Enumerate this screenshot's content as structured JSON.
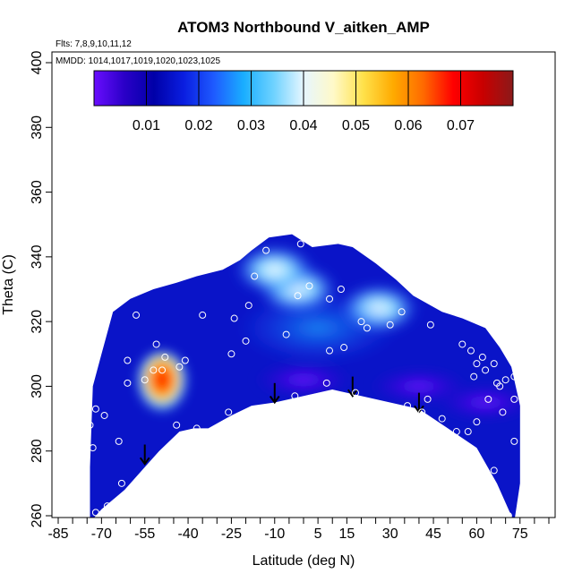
{
  "chart_data": {
    "type": "heatmap",
    "title": "ATOM3 Northbound V_aitken_AMP",
    "annotations": {
      "flights": "Flts: 7,8,9,10,11,12",
      "dates": "MMDD: 1014,1017,1019,1020,1023,1025"
    },
    "xlabel": "Latitude (deg N)",
    "ylabel": "Theta (C)",
    "xlim": [
      -85,
      85
    ],
    "ylim": [
      260,
      400
    ],
    "x_ticks": [
      -85,
      -70,
      -55,
      -40,
      -25,
      -10,
      5,
      15,
      30,
      45,
      60,
      75
    ],
    "y_ticks": [
      260,
      280,
      300,
      320,
      340,
      360,
      380,
      400
    ],
    "colorbar": {
      "range": [
        0.0,
        0.08
      ],
      "ticks": [
        0.01,
        0.02,
        0.03,
        0.04,
        0.05,
        0.06,
        0.07
      ],
      "tick_labels": [
        "0.01",
        "0.02",
        "0.03",
        "0.04",
        "0.05",
        "0.06",
        "0.07"
      ],
      "colors": [
        "#6a0dff",
        "#2b00c8",
        "#0000a8",
        "#0a1ee0",
        "#1e5aff",
        "#1aaeff",
        "#6ed2ff",
        "#e6f6ff",
        "#fff9c8",
        "#ffe14a",
        "#ffaa00",
        "#ff6a00",
        "#ff0000",
        "#c80000",
        "#8b1a1a"
      ]
    },
    "lower_boundary": [
      {
        "lat": -74,
        "theta": 258
      },
      {
        "lat": -70,
        "theta": 262
      },
      {
        "lat": -62,
        "theta": 268
      },
      {
        "lat": -55,
        "theta": 275
      },
      {
        "lat": -50,
        "theta": 280
      },
      {
        "lat": -43,
        "theta": 286
      },
      {
        "lat": -38,
        "theta": 287
      },
      {
        "lat": -33,
        "theta": 287
      },
      {
        "lat": -25,
        "theta": 291
      },
      {
        "lat": -18,
        "theta": 294
      },
      {
        "lat": -10,
        "theta": 295
      },
      {
        "lat": 0,
        "theta": 297
      },
      {
        "lat": 10,
        "theta": 299
      },
      {
        "lat": 20,
        "theta": 297
      },
      {
        "lat": 30,
        "theta": 295
      },
      {
        "lat": 40,
        "theta": 293
      },
      {
        "lat": 50,
        "theta": 287
      },
      {
        "lat": 60,
        "theta": 281
      },
      {
        "lat": 67,
        "theta": 270
      },
      {
        "lat": 73,
        "theta": 258
      }
    ],
    "upper_boundary": [
      {
        "lat": -74,
        "theta": 275
      },
      {
        "lat": -73,
        "theta": 300
      },
      {
        "lat": -70,
        "theta": 310
      },
      {
        "lat": -66,
        "theta": 323
      },
      {
        "lat": -60,
        "theta": 327
      },
      {
        "lat": -52,
        "theta": 330
      },
      {
        "lat": -44,
        "theta": 332
      },
      {
        "lat": -37,
        "theta": 334
      },
      {
        "lat": -28,
        "theta": 336
      },
      {
        "lat": -22,
        "theta": 339
      },
      {
        "lat": -18,
        "theta": 342
      },
      {
        "lat": -12,
        "theta": 346
      },
      {
        "lat": -4,
        "theta": 347
      },
      {
        "lat": 3,
        "theta": 343
      },
      {
        "lat": 12,
        "theta": 344
      },
      {
        "lat": 17,
        "theta": 343
      },
      {
        "lat": 25,
        "theta": 338
      },
      {
        "lat": 32,
        "theta": 333
      },
      {
        "lat": 38,
        "theta": 328
      },
      {
        "lat": 48,
        "theta": 323
      },
      {
        "lat": 55,
        "theta": 321
      },
      {
        "lat": 63,
        "theta": 318
      },
      {
        "lat": 68,
        "theta": 312
      },
      {
        "lat": 72,
        "theta": 306
      },
      {
        "lat": 75,
        "theta": 294
      },
      {
        "lat": 75,
        "theta": 270
      },
      {
        "lat": 73,
        "theta": 258
      }
    ],
    "hotspot": {
      "lat": -49,
      "theta": 300,
      "max_value": 0.075
    },
    "highlight_regions": [
      {
        "lat": 26,
        "theta": 324,
        "value": 0.04
      },
      {
        "lat": -2,
        "theta": 330,
        "value": 0.035
      },
      {
        "lat": -10,
        "theta": 336,
        "value": 0.035
      }
    ],
    "low_regions": [
      {
        "lat": 0,
        "theta": 302,
        "value": 0.002
      },
      {
        "lat": 40,
        "theta": 300,
        "value": 0.004
      },
      {
        "lat": 63,
        "theta": 295,
        "value": 0.003
      }
    ],
    "arrows": [
      {
        "lat": -55,
        "theta_top": 282,
        "theta_tip": 276
      },
      {
        "lat": -10,
        "theta_top": 301,
        "theta_tip": 295
      },
      {
        "lat": 17,
        "theta_top": 303,
        "theta_tip": 297
      },
      {
        "lat": 40,
        "theta_top": 298,
        "theta_tip": 292
      }
    ],
    "sample_points": [
      [
        -72,
        261
      ],
      [
        -68,
        263
      ],
      [
        -74,
        288
      ],
      [
        -73,
        281
      ],
      [
        -72,
        293
      ],
      [
        -69,
        291
      ],
      [
        -64,
        283
      ],
      [
        -63,
        270
      ],
      [
        -61,
        301
      ],
      [
        -61,
        308
      ],
      [
        -58,
        322
      ],
      [
        -55,
        302
      ],
      [
        -52,
        305
      ],
      [
        -51,
        313
      ],
      [
        -48,
        309
      ],
      [
        -49,
        305
      ],
      [
        -44,
        288
      ],
      [
        -43,
        306
      ],
      [
        -41,
        308
      ],
      [
        -37,
        287
      ],
      [
        -35,
        322
      ],
      [
        -26,
        292
      ],
      [
        -25,
        310
      ],
      [
        -24,
        321
      ],
      [
        -20,
        314
      ],
      [
        -19,
        325
      ],
      [
        -17,
        334
      ],
      [
        -13,
        342
      ],
      [
        -6,
        316
      ],
      [
        -3,
        297
      ],
      [
        -2,
        328
      ],
      [
        2,
        331
      ],
      [
        -1,
        344
      ],
      [
        8,
        301
      ],
      [
        9,
        311
      ],
      [
        9,
        327
      ],
      [
        13,
        330
      ],
      [
        14,
        312
      ],
      [
        18,
        298
      ],
      [
        20,
        320
      ],
      [
        22,
        318
      ],
      [
        30,
        319
      ],
      [
        34,
        323
      ],
      [
        36,
        294
      ],
      [
        41,
        292
      ],
      [
        43,
        296
      ],
      [
        44,
        319
      ],
      [
        46,
        283
      ],
      [
        48,
        290
      ],
      [
        51,
        285
      ],
      [
        53,
        286
      ],
      [
        55,
        313
      ],
      [
        57,
        286
      ],
      [
        58,
        311
      ],
      [
        59,
        303
      ],
      [
        60,
        289
      ],
      [
        60,
        307
      ],
      [
        62,
        309
      ],
      [
        63,
        305
      ],
      [
        64,
        296
      ],
      [
        66,
        274
      ],
      [
        66,
        307
      ],
      [
        67,
        301
      ],
      [
        68,
        300
      ],
      [
        70,
        302
      ],
      [
        73,
        303
      ],
      [
        73,
        283
      ],
      [
        71,
        260
      ],
      [
        73,
        296
      ],
      [
        69,
        292
      ]
    ]
  }
}
